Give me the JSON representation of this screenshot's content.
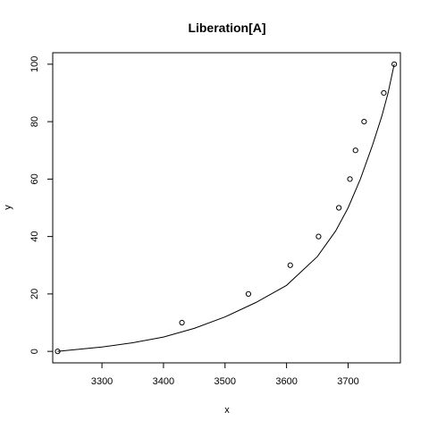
{
  "chart_data": {
    "type": "scatter",
    "title": "Liberation[A]",
    "xlabel": "x",
    "ylabel": "y",
    "xlim": [
      3220,
      3785
    ],
    "ylim": [
      -4,
      104
    ],
    "xticks": [
      3300,
      3400,
      3500,
      3600,
      3700
    ],
    "yticks": [
      0,
      20,
      40,
      60,
      80,
      100
    ],
    "grid": false,
    "points": [
      {
        "x": 3228,
        "y": 0
      },
      {
        "x": 3430,
        "y": 10
      },
      {
        "x": 3538,
        "y": 20
      },
      {
        "x": 3606,
        "y": 30
      },
      {
        "x": 3652,
        "y": 40
      },
      {
        "x": 3685,
        "y": 50
      },
      {
        "x": 3703,
        "y": 60
      },
      {
        "x": 3712,
        "y": 70
      },
      {
        "x": 3726,
        "y": 80
      },
      {
        "x": 3758,
        "y": 90
      },
      {
        "x": 3775,
        "y": 100
      }
    ],
    "fit_line": [
      {
        "x": 3228,
        "y": 0
      },
      {
        "x": 3300,
        "y": 1.5
      },
      {
        "x": 3350,
        "y": 3
      },
      {
        "x": 3400,
        "y": 5
      },
      {
        "x": 3450,
        "y": 8
      },
      {
        "x": 3500,
        "y": 12
      },
      {
        "x": 3550,
        "y": 17
      },
      {
        "x": 3600,
        "y": 23
      },
      {
        "x": 3650,
        "y": 33
      },
      {
        "x": 3680,
        "y": 42
      },
      {
        "x": 3700,
        "y": 50
      },
      {
        "x": 3720,
        "y": 60
      },
      {
        "x": 3740,
        "y": 72
      },
      {
        "x": 3755,
        "y": 82
      },
      {
        "x": 3765,
        "y": 90
      },
      {
        "x": 3775,
        "y": 100
      }
    ]
  }
}
